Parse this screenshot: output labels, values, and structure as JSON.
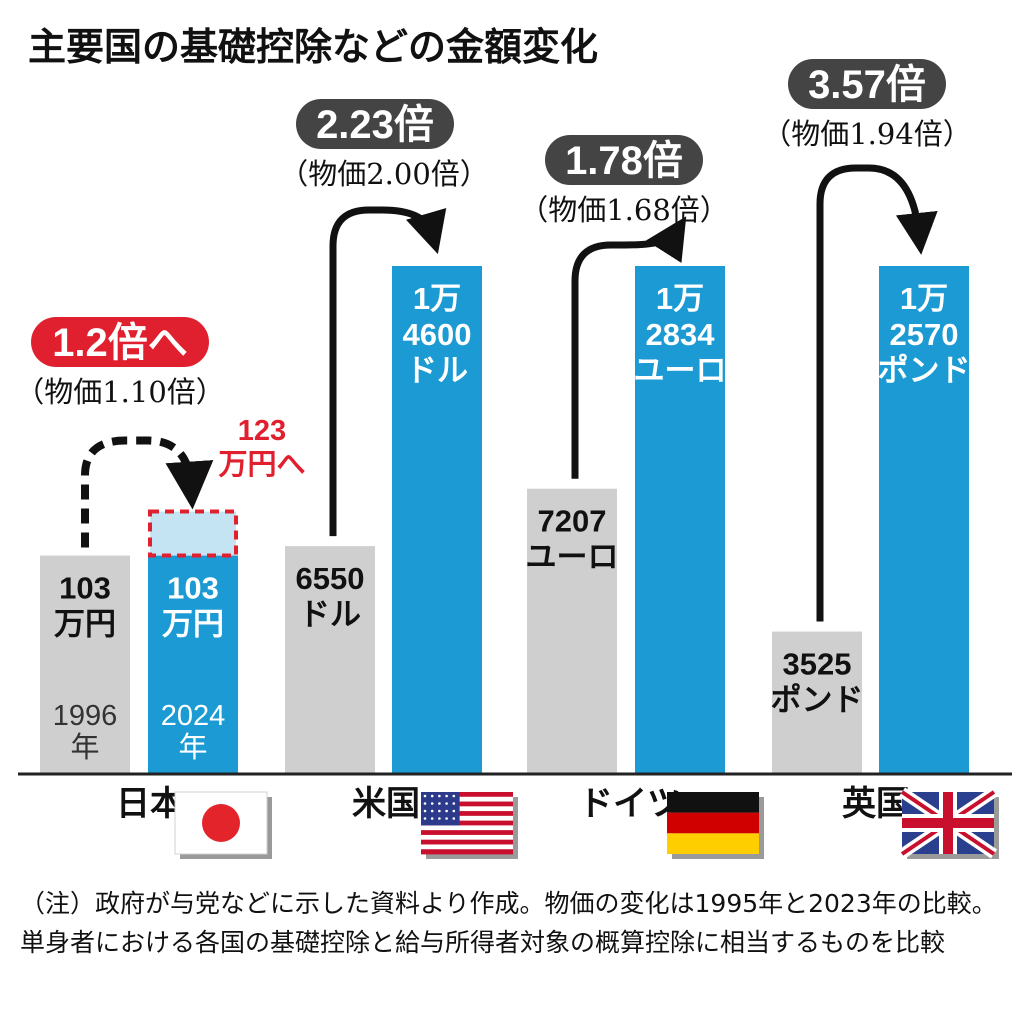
{
  "title": "主要国の基礎控除などの金額変化",
  "note": "（注）政府が与党などに示した資料より作成。物価の変化は1995年と2023年の比較。単身者における各国の基礎控除と給与所得者対象の概算控除に相当するものを比較",
  "colors": {
    "old_bar": "#cfcfcf",
    "new_bar": "#1b9ad3",
    "pill_dark": "#444444",
    "pill_red": "#e0202e",
    "planned_fill": "#c5e4f3",
    "planned_border": "#e0202e"
  },
  "chart_data": {
    "type": "bar",
    "title": "主要国の基礎控除などの金額変化",
    "categories": [
      "日本",
      "米国",
      "ドイツ",
      "英国"
    ],
    "series": [
      {
        "name": "1996年",
        "values": [
          1030000,
          6550,
          7207,
          3525
        ]
      },
      {
        "name": "2024年",
        "values": [
          1030000,
          14600,
          12834,
          12570
        ]
      }
    ],
    "planned": {
      "category": "日本",
      "value": 1230000,
      "label": [
        "123",
        "万円へ"
      ]
    },
    "groups": [
      {
        "country": "日本",
        "flag_icon": "japan-flag-icon",
        "ratio": "1.2倍へ",
        "cpi": "（物価1.10倍）",
        "ratio_style": "red",
        "old_label": [
          "103",
          "万円"
        ],
        "new_label": [
          "103",
          "万円"
        ],
        "old_year": [
          "1996",
          "年"
        ],
        "new_year": [
          "2024",
          "年"
        ],
        "old_scale": 0.43,
        "new_scale": 0.43
      },
      {
        "country": "米国",
        "flag_icon": "us-flag-icon",
        "ratio": "2.23倍",
        "cpi": "（物価2.00倍）",
        "ratio_style": "dark",
        "old_label": [
          "6550",
          "ドル"
        ],
        "new_label": [
          "1万",
          "4600",
          "ドル"
        ],
        "old_scale": 0.4486,
        "new_scale": 1.0
      },
      {
        "country": "ドイツ",
        "flag_icon": "germany-flag-icon",
        "ratio": "1.78倍",
        "cpi": "（物価1.68倍）",
        "ratio_style": "dark",
        "old_label": [
          "7207",
          "ユーロ"
        ],
        "new_label": [
          "1万",
          "2834",
          "ユーロ"
        ],
        "old_scale": 0.5616,
        "new_scale": 1.0
      },
      {
        "country": "英国",
        "flag_icon": "uk-flag-icon",
        "ratio": "3.57倍",
        "cpi": "（物価1.94倍）",
        "ratio_style": "dark",
        "old_label": [
          "3525",
          "ポンド"
        ],
        "new_label": [
          "1万",
          "2570",
          "ポンド"
        ],
        "old_scale": 0.2804,
        "new_scale": 1.0
      }
    ]
  }
}
